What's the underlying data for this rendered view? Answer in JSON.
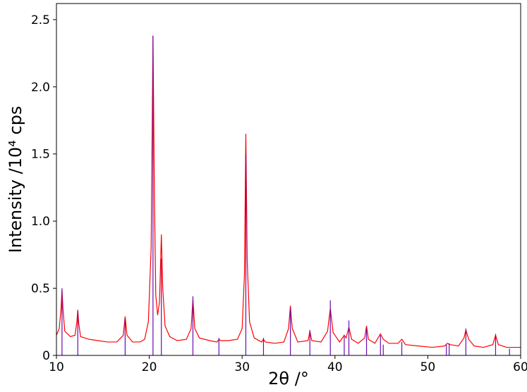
{
  "chart_data": {
    "type": "line",
    "xlabel": "2θ /°",
    "ylabel": "Intensity /10⁴ cps",
    "xlim": [
      10,
      60
    ],
    "xticks": [
      10,
      20,
      30,
      40,
      50,
      60
    ],
    "ylim": [
      0,
      2.62
    ],
    "yticks": [
      0,
      0.5,
      {
        "value": 1,
        "label": "1.0"
      },
      1.5,
      {
        "value": 2,
        "label": "2.0"
      },
      2.5
    ],
    "series": [
      {
        "style": "line",
        "color": "#ff0000",
        "x": [
          10,
          10.3,
          10.5,
          10.6,
          10.7,
          10.9,
          11.5,
          12.0,
          12.2,
          12.3,
          12.4,
          12.6,
          13.5,
          14.5,
          15.5,
          16.5,
          17.2,
          17.4,
          17.6,
          18.2,
          19.0,
          19.5,
          19.9,
          20.2,
          20.4,
          20.55,
          20.7,
          20.9,
          21.1,
          21.3,
          21.45,
          21.7,
          22.2,
          23.0,
          24.0,
          24.5,
          24.7,
          24.9,
          25.4,
          26.5,
          27.3,
          27.5,
          27.7,
          28.5,
          29.5,
          30.0,
          30.25,
          30.4,
          30.55,
          30.8,
          31.3,
          32.1,
          32.3,
          32.5,
          33.5,
          34.5,
          35.0,
          35.2,
          35.4,
          36.0,
          37.1,
          37.3,
          37.5,
          38.5,
          39.2,
          39.5,
          39.8,
          40.5,
          41.0,
          41.2,
          41.5,
          41.8,
          42.5,
          43.2,
          43.4,
          43.6,
          44.3,
          44.9,
          45.2,
          45.8,
          46.8,
          47.2,
          47.6,
          49,
          50.5,
          51.8,
          52.1,
          52.4,
          53.3,
          53.9,
          54.1,
          54.4,
          55.0,
          56,
          57.0,
          57.3,
          57.6,
          58.5,
          59.2,
          60
        ],
        "values": [
          0.15,
          0.2,
          0.35,
          0.49,
          0.35,
          0.18,
          0.14,
          0.15,
          0.25,
          0.34,
          0.24,
          0.14,
          0.12,
          0.11,
          0.1,
          0.1,
          0.15,
          0.29,
          0.15,
          0.1,
          0.1,
          0.12,
          0.25,
          0.8,
          2.38,
          1.2,
          0.45,
          0.3,
          0.4,
          0.9,
          0.5,
          0.22,
          0.14,
          0.11,
          0.12,
          0.2,
          0.42,
          0.2,
          0.13,
          0.11,
          0.1,
          0.12,
          0.11,
          0.11,
          0.12,
          0.2,
          0.6,
          1.65,
          0.7,
          0.25,
          0.13,
          0.1,
          0.12,
          0.1,
          0.09,
          0.1,
          0.2,
          0.37,
          0.2,
          0.1,
          0.11,
          0.18,
          0.11,
          0.1,
          0.18,
          0.35,
          0.17,
          0.1,
          0.15,
          0.13,
          0.21,
          0.12,
          0.09,
          0.13,
          0.22,
          0.12,
          0.09,
          0.16,
          0.12,
          0.09,
          0.09,
          0.12,
          0.08,
          0.07,
          0.06,
          0.07,
          0.09,
          0.08,
          0.07,
          0.13,
          0.19,
          0.12,
          0.07,
          0.06,
          0.08,
          0.15,
          0.08,
          0.06,
          0.06,
          0.06
        ]
      },
      {
        "style": "stick",
        "color": "#6a0dad",
        "x": [
          10.6,
          12.3,
          17.4,
          20.4,
          21.3,
          24.7,
          27.5,
          30.4,
          32.3,
          35.2,
          37.3,
          39.5,
          41.0,
          41.5,
          43.4,
          44.9,
          45.2,
          47.2,
          52.0,
          52.3,
          54.1,
          57.3,
          58.8
        ],
        "values": [
          0.5,
          0.33,
          0.27,
          2.38,
          0.72,
          0.44,
          0.13,
          1.5,
          0.13,
          0.35,
          0.19,
          0.41,
          0.14,
          0.26,
          0.2,
          0.15,
          0.08,
          0.1,
          0.08,
          0.09,
          0.2,
          0.16,
          0.05
        ]
      }
    ]
  }
}
